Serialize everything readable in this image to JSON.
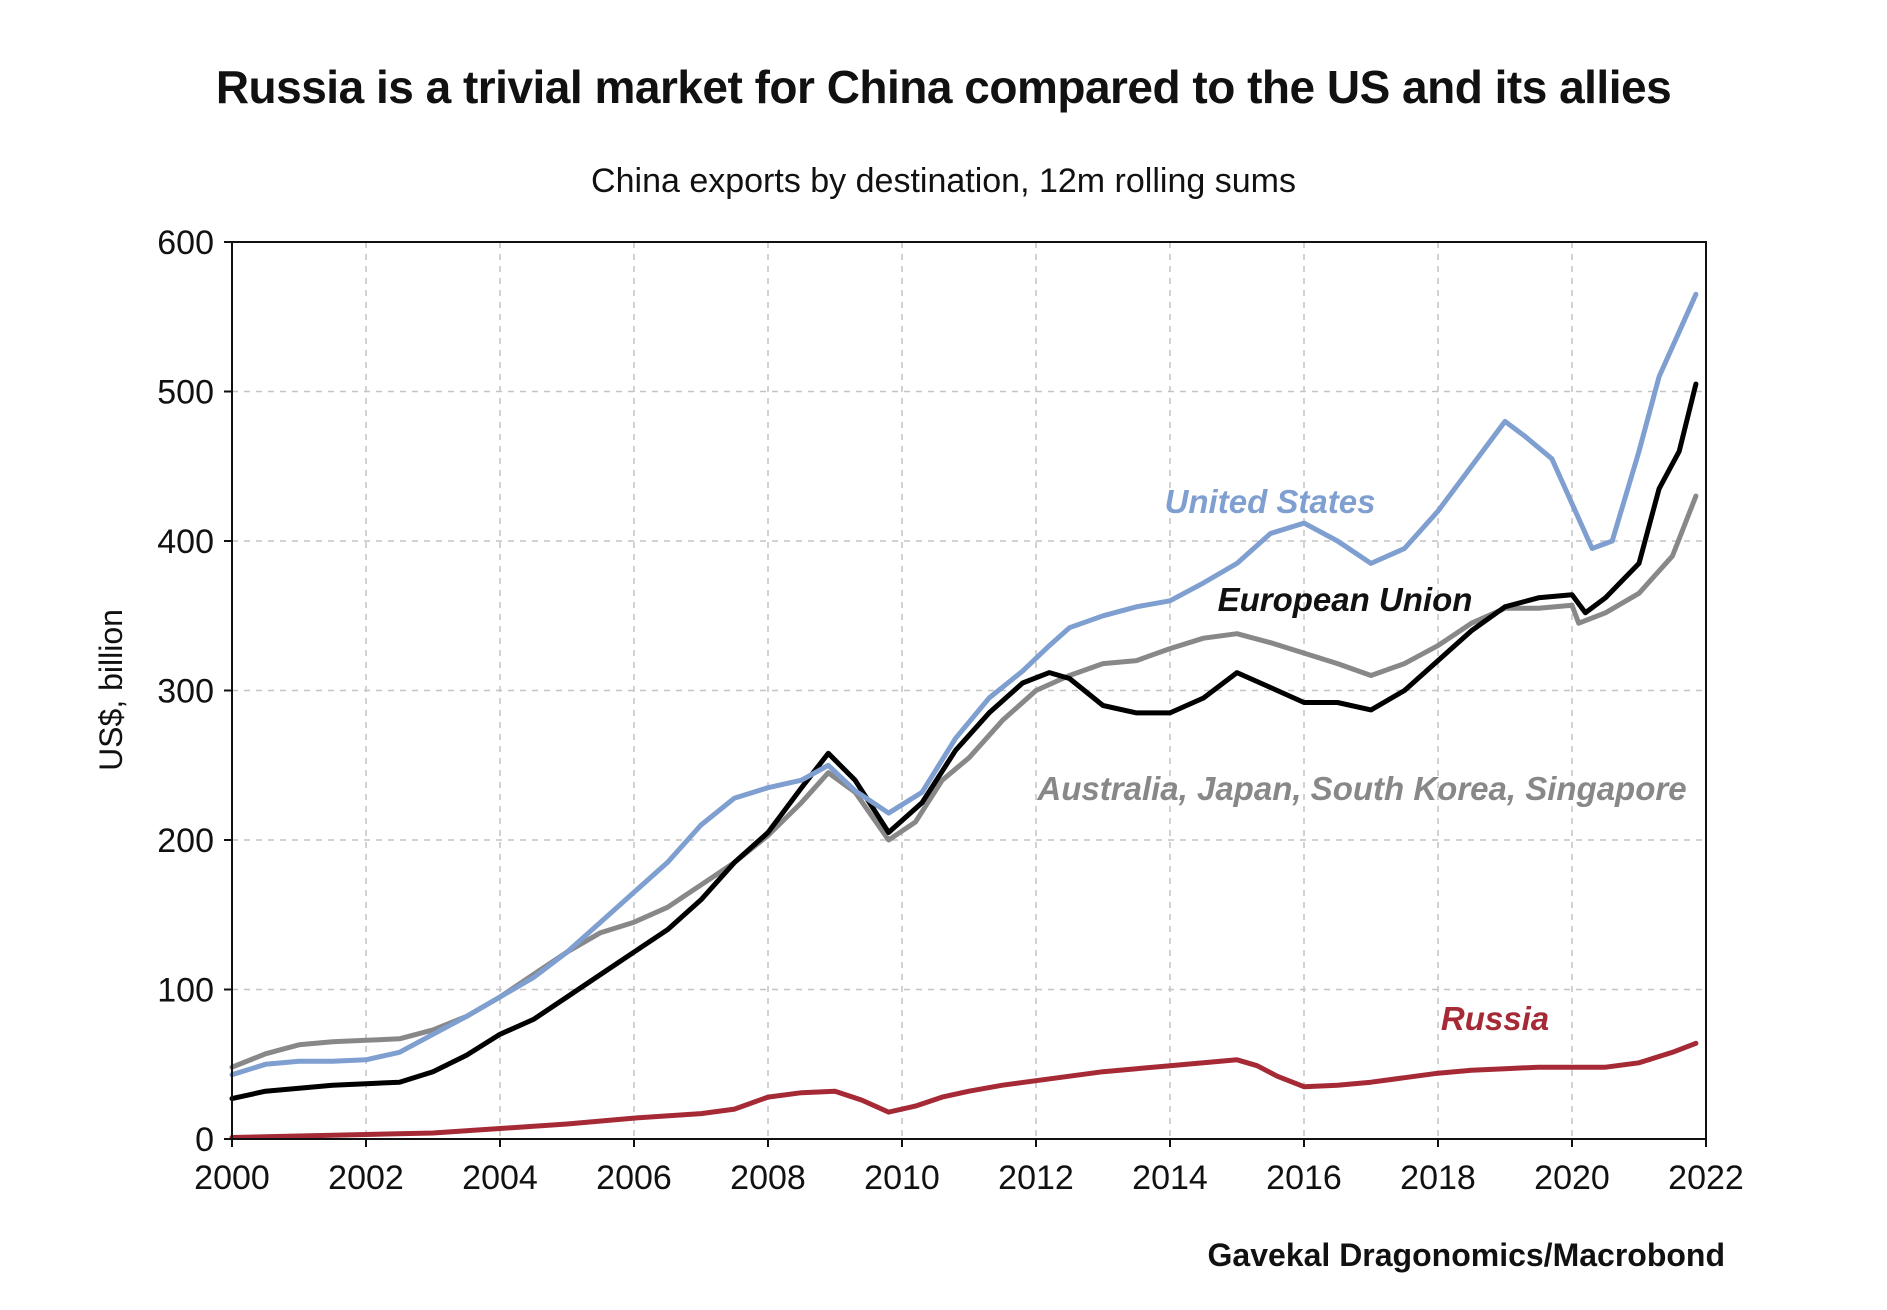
{
  "title": "Russia is a trivial market for China compared to the US and its allies",
  "subtitle": "China exports by destination, 12m rolling sums",
  "source": "Gavekal Dragonomics/Macrobond",
  "chart_data": {
    "type": "line",
    "ylabel": "US$, billion",
    "xlim": [
      2000,
      2022
    ],
    "ylim": [
      0,
      600
    ],
    "x_ticks": [
      "2000",
      "2002",
      "2004",
      "2006",
      "2008",
      "2010",
      "2012",
      "2014",
      "2016",
      "2018",
      "2020",
      "2022"
    ],
    "y_ticks": [
      "0",
      "100",
      "200",
      "300",
      "400",
      "500",
      "600"
    ],
    "grid": true,
    "series": [
      {
        "name": "Australia, Japan, South Korea, Singapore",
        "color": "#888888",
        "x": [
          2000,
          2000.5,
          2001,
          2001.5,
          2002,
          2002.5,
          2003,
          2003.5,
          2004,
          2004.5,
          2005,
          2005.5,
          2006,
          2006.5,
          2007,
          2007.5,
          2008,
          2008.5,
          2008.9,
          2009.3,
          2009.8,
          2010.2,
          2010.6,
          2011,
          2011.5,
          2012,
          2012.5,
          2013,
          2013.5,
          2014,
          2014.5,
          2015,
          2015.5,
          2016,
          2016.5,
          2017,
          2017.5,
          2018,
          2018.5,
          2019,
          2019.5,
          2020,
          2020.1,
          2020.5,
          2021,
          2021.5,
          2021.85
        ],
        "y": [
          48,
          57,
          63,
          65,
          66,
          67,
          73,
          82,
          95,
          110,
          125,
          138,
          145,
          155,
          170,
          185,
          203,
          225,
          245,
          232,
          200,
          212,
          240,
          255,
          280,
          300,
          310,
          318,
          320,
          328,
          335,
          338,
          332,
          325,
          318,
          310,
          318,
          330,
          345,
          355,
          355,
          357,
          345,
          352,
          365,
          390,
          430
        ]
      },
      {
        "name": "European Union",
        "color": "#000000",
        "x": [
          2000,
          2000.5,
          2001,
          2001.5,
          2002,
          2002.5,
          2003,
          2003.5,
          2004,
          2004.5,
          2005,
          2005.5,
          2006,
          2006.5,
          2007,
          2007.5,
          2008,
          2008.5,
          2008.9,
          2009.3,
          2009.8,
          2010.3,
          2010.8,
          2011.3,
          2011.8,
          2012.2,
          2012.5,
          2013,
          2013.5,
          2014,
          2014.5,
          2015,
          2015.5,
          2016,
          2016.5,
          2017,
          2017.5,
          2018,
          2018.5,
          2019,
          2019.5,
          2020,
          2020.2,
          2020.5,
          2021,
          2021.3,
          2021.6,
          2021.85
        ],
        "y": [
          27,
          32,
          34,
          36,
          37,
          38,
          45,
          56,
          70,
          80,
          95,
          110,
          125,
          140,
          160,
          185,
          205,
          235,
          258,
          240,
          205,
          225,
          260,
          285,
          305,
          312,
          308,
          290,
          285,
          285,
          295,
          312,
          302,
          292,
          292,
          287,
          300,
          320,
          340,
          356,
          362,
          364,
          352,
          362,
          385,
          435,
          460,
          505
        ]
      },
      {
        "name": "United States",
        "color": "#7f9fd0",
        "x": [
          2000,
          2000.5,
          2001,
          2001.5,
          2002,
          2002.5,
          2003,
          2003.5,
          2004,
          2004.5,
          2005,
          2005.5,
          2006,
          2006.5,
          2007,
          2007.5,
          2008,
          2008.5,
          2008.9,
          2009.3,
          2009.8,
          2010.3,
          2010.8,
          2011.3,
          2011.8,
          2012.2,
          2012.5,
          2013,
          2013.5,
          2014,
          2014.5,
          2015,
          2015.5,
          2016,
          2016.5,
          2017,
          2017.5,
          2018,
          2018.5,
          2019,
          2019.3,
          2019.7,
          2020,
          2020.3,
          2020.6,
          2021,
          2021.3,
          2021.6,
          2021.85
        ],
        "y": [
          43,
          50,
          52,
          52,
          53,
          58,
          70,
          82,
          95,
          108,
          125,
          145,
          165,
          185,
          210,
          228,
          235,
          240,
          250,
          233,
          218,
          232,
          268,
          295,
          313,
          330,
          342,
          350,
          356,
          360,
          372,
          385,
          405,
          412,
          400,
          385,
          395,
          420,
          450,
          480,
          470,
          455,
          425,
          395,
          400,
          460,
          510,
          540,
          565
        ]
      },
      {
        "name": "Russia",
        "color": "#a52a35",
        "x": [
          2000,
          2001,
          2002,
          2003,
          2004,
          2005,
          2006,
          2007,
          2007.5,
          2008,
          2008.5,
          2009,
          2009.4,
          2009.8,
          2010.2,
          2010.6,
          2011,
          2011.5,
          2012,
          2012.5,
          2013,
          2013.5,
          2014,
          2014.5,
          2015,
          2015.3,
          2015.6,
          2016,
          2016.5,
          2017,
          2017.5,
          2018,
          2018.5,
          2019,
          2019.5,
          2020,
          2020.5,
          2021,
          2021.5,
          2021.85
        ],
        "y": [
          1,
          2,
          3,
          4,
          7,
          10,
          14,
          17,
          20,
          28,
          31,
          32,
          26,
          18,
          22,
          28,
          32,
          36,
          39,
          42,
          45,
          47,
          49,
          51,
          53,
          49,
          42,
          35,
          36,
          38,
          41,
          44,
          46,
          47,
          48,
          48,
          48,
          51,
          58,
          64
        ]
      }
    ]
  },
  "labels": {
    "us": "United States",
    "eu": "European Union",
    "ajks": "Australia, Japan, South Korea, Singapore",
    "russia": "Russia"
  }
}
